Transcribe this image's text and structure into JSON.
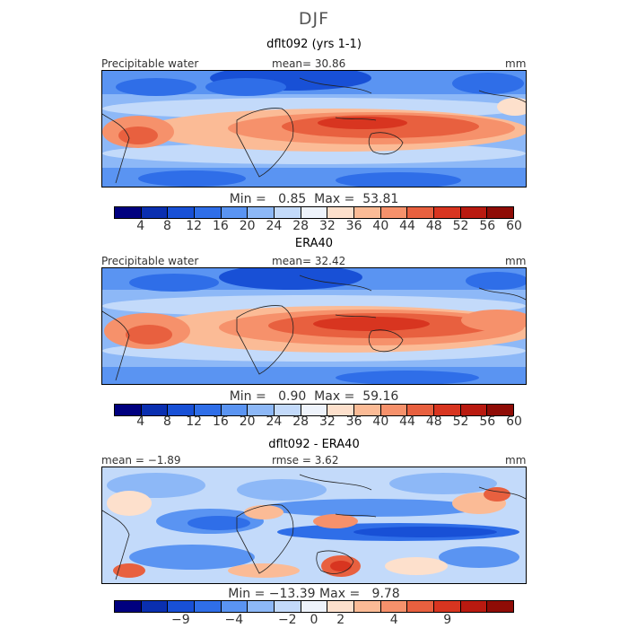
{
  "season": "DJF",
  "panels": [
    {
      "title": "dflt092 (yrs 1-1)",
      "label_left": "Precipitable water",
      "label_mid": "mean=  30.86",
      "label_right": "mm",
      "min_label": "Min =",
      "min_value": "0.85",
      "max_label": "Max =",
      "max_value": "53.81"
    },
    {
      "title": "ERA40",
      "label_left": "Precipitable water",
      "label_mid": "mean=  32.42",
      "label_right": "mm",
      "min_label": "Min =",
      "min_value": "0.90",
      "max_label": "Max =",
      "max_value": "59.16"
    },
    {
      "title": "dflt092 - ERA40",
      "label_left": "mean = −1.89",
      "label_mid": "rmse =   3.62",
      "label_right": "mm",
      "min_label": "Min =",
      "min_value": "−13.39",
      "max_label": "Max =",
      "max_value": "9.78"
    }
  ],
  "colorbar_abs": {
    "colors": [
      "#00007f",
      "#0a2fb0",
      "#1850d6",
      "#2f6ee8",
      "#5a94f2",
      "#8db8f7",
      "#c3dafa",
      "#eef3fb",
      "#fde0cc",
      "#fbbb96",
      "#f6916b",
      "#e8603f",
      "#d83520",
      "#b91a10",
      "#8f0c06"
    ],
    "ticks": [
      "4",
      "8",
      "12",
      "16",
      "20",
      "24",
      "28",
      "32",
      "36",
      "40",
      "44",
      "48",
      "52",
      "56",
      "60"
    ]
  },
  "colorbar_diff": {
    "colors": [
      "#00007f",
      "#0a2fb0",
      "#1850d6",
      "#2f6ee8",
      "#5a94f2",
      "#8db8f7",
      "#c3dafa",
      "#eef3fb",
      "#fde0cc",
      "#fbbb96",
      "#f6916b",
      "#e8603f",
      "#d83520",
      "#b91a10",
      "#8f0c06"
    ],
    "ticks": [
      "−9",
      "−4",
      "−2",
      "0",
      "2",
      "4",
      "9"
    ]
  }
}
